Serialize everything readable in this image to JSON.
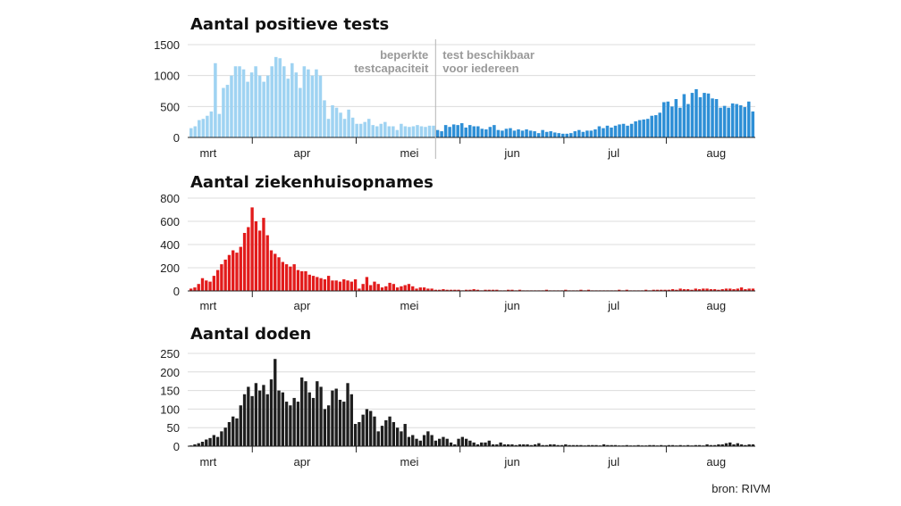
{
  "source": "bron: RIVM",
  "colors": {
    "tests_before": "#9fd3f2",
    "tests_after": "#2e8fd6",
    "hospital": "#e21b1b",
    "deaths": "#1e1e1e",
    "grid": "#dcdcdc",
    "divider": "#b5b5b5"
  },
  "chart_data": [
    {
      "type": "bar",
      "title": "Aantal positieve tests",
      "x_tick_labels": [
        "mrt",
        "apr",
        "mei",
        "jun",
        "jul",
        "aug"
      ],
      "y_ticks": [
        0,
        500,
        1000,
        1500
      ],
      "ylim": [
        0,
        1500
      ],
      "grid": true,
      "annotation_left": [
        "beperkte",
        "testcapaciteit"
      ],
      "annotation_right": [
        "test beschikbaar",
        "voor iedereen"
      ],
      "series": [
        {
          "segment": "beperkte testcapaciteit",
          "values": [
            150,
            180,
            280,
            300,
            350,
            420,
            1200,
            380,
            800,
            850,
            1000,
            1150,
            1150,
            1100,
            900,
            1050,
            1150,
            1000,
            900,
            1000,
            1150,
            1300,
            1280,
            1150,
            950,
            1200,
            1050,
            800,
            1150,
            1100,
            1000,
            1100,
            1000,
            600,
            300,
            520,
            480,
            400,
            300,
            450,
            320,
            220,
            220,
            250,
            300,
            200,
            180,
            220,
            250,
            180,
            180,
            120,
            220,
            180,
            170,
            180,
            200,
            180,
            170,
            190,
            190
          ]
        },
        {
          "segment": "test beschikbaar voor iedereen",
          "values": [
            120,
            100,
            200,
            170,
            210,
            200,
            230,
            160,
            200,
            180,
            180,
            140,
            130,
            170,
            200,
            120,
            110,
            140,
            150,
            110,
            130,
            110,
            130,
            110,
            100,
            70,
            120,
            90,
            100,
            80,
            70,
            60,
            60,
            70,
            100,
            120,
            90,
            110,
            110,
            130,
            180,
            150,
            190,
            160,
            190,
            210,
            220,
            190,
            220,
            260,
            280,
            290,
            300,
            350,
            360,
            400,
            570,
            580,
            500,
            620,
            480,
            700,
            540,
            720,
            780,
            650,
            720,
            710,
            630,
            620,
            480,
            510,
            480,
            550,
            540,
            520,
            490,
            580,
            420
          ]
        }
      ]
    },
    {
      "type": "bar",
      "title": "Aantal ziekenhuisopnames",
      "x_tick_labels": [
        "mrt",
        "apr",
        "mei",
        "jun",
        "jul",
        "aug"
      ],
      "y_ticks": [
        0,
        200,
        400,
        600,
        800
      ],
      "ylim": [
        0,
        800
      ],
      "grid": true,
      "values": [
        20,
        30,
        60,
        110,
        90,
        80,
        130,
        180,
        230,
        270,
        310,
        350,
        330,
        380,
        500,
        550,
        720,
        600,
        520,
        630,
        480,
        350,
        320,
        290,
        250,
        230,
        210,
        230,
        180,
        170,
        170,
        140,
        130,
        120,
        110,
        100,
        130,
        90,
        90,
        80,
        100,
        90,
        80,
        100,
        20,
        60,
        120,
        50,
        80,
        60,
        30,
        40,
        70,
        60,
        30,
        40,
        50,
        60,
        40,
        20,
        30,
        30,
        20,
        20,
        10,
        10,
        15,
        10,
        10,
        10,
        10,
        5,
        10,
        10,
        15,
        10,
        5,
        10,
        10,
        10,
        10,
        5,
        5,
        10,
        10,
        5,
        10,
        5,
        5,
        5,
        5,
        5,
        5,
        10,
        5,
        5,
        5,
        5,
        10,
        5,
        5,
        5,
        10,
        5,
        10,
        5,
        5,
        5,
        5,
        5,
        5,
        5,
        10,
        5,
        10,
        5,
        5,
        5,
        5,
        10,
        5,
        10,
        10,
        10,
        10,
        10,
        15,
        10,
        20,
        15,
        15,
        10,
        20,
        15,
        20,
        20,
        15,
        15,
        10,
        15,
        20,
        20,
        15,
        20,
        30,
        15,
        20,
        20
      ]
    },
    {
      "type": "bar",
      "title": "Aantal doden",
      "x_tick_labels": [
        "mrt",
        "apr",
        "mei",
        "jun",
        "jul",
        "aug"
      ],
      "y_ticks": [
        0,
        50,
        100,
        150,
        200,
        250
      ],
      "ylim": [
        0,
        250
      ],
      "grid": true,
      "values": [
        2,
        5,
        8,
        12,
        18,
        22,
        30,
        25,
        40,
        50,
        65,
        80,
        75,
        110,
        140,
        160,
        135,
        170,
        150,
        165,
        140,
        180,
        235,
        150,
        145,
        120,
        110,
        130,
        120,
        185,
        175,
        145,
        130,
        175,
        160,
        100,
        110,
        150,
        155,
        125,
        120,
        170,
        140,
        60,
        65,
        85,
        100,
        95,
        80,
        40,
        55,
        70,
        80,
        65,
        50,
        40,
        60,
        25,
        30,
        20,
        15,
        30,
        40,
        30,
        15,
        20,
        25,
        20,
        10,
        5,
        20,
        25,
        20,
        15,
        10,
        5,
        10,
        10,
        15,
        5,
        5,
        10,
        5,
        5,
        5,
        3,
        5,
        5,
        5,
        3,
        5,
        8,
        3,
        3,
        5,
        5,
        3,
        3,
        5,
        3,
        3,
        3,
        3,
        2,
        3,
        3,
        3,
        2,
        5,
        3,
        3,
        3,
        2,
        2,
        3,
        2,
        2,
        3,
        2,
        2,
        3,
        3,
        2,
        3,
        2,
        3,
        3,
        2,
        3,
        2,
        3,
        2,
        3,
        3,
        2,
        5,
        3,
        3,
        5,
        5,
        8,
        10,
        5,
        8,
        5,
        3,
        5,
        5
      ]
    }
  ]
}
